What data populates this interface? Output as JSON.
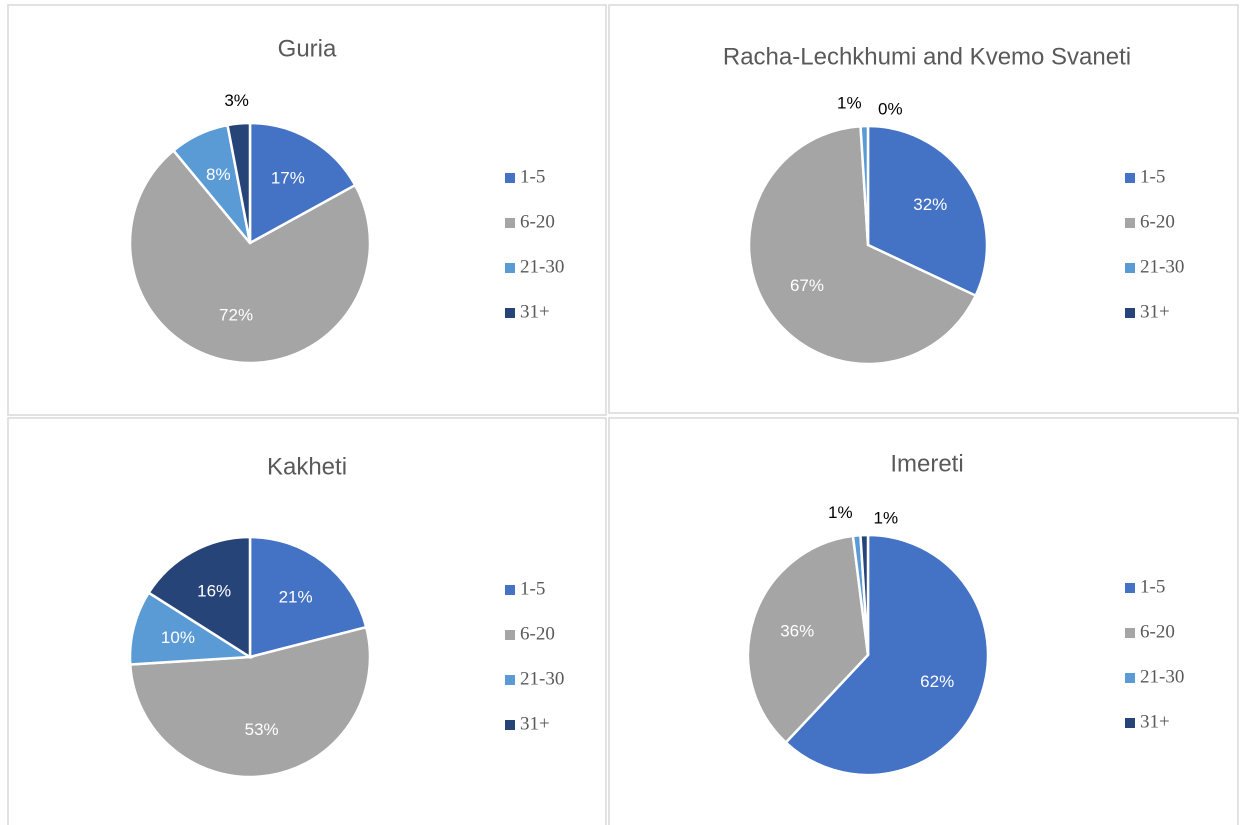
{
  "chart_data": [
    {
      "type": "pie",
      "title": "Guria",
      "categories": [
        "1-5",
        "6-20",
        "21-30",
        "31+"
      ],
      "values": [
        17,
        72,
        8,
        3
      ],
      "value_labels": [
        "17%",
        "72%",
        "8%",
        "3%"
      ],
      "colors": [
        "#4472c4",
        "#a5a5a5",
        "#5b9bd5",
        "#264478"
      ],
      "legend": "right"
    },
    {
      "type": "pie",
      "title": "Racha-Lechkhumi and Kvemo Svaneti",
      "categories": [
        "1-5",
        "6-20",
        "21-30",
        "31+"
      ],
      "values": [
        32,
        67,
        1,
        0
      ],
      "value_labels": [
        "32%",
        "67%",
        "1%",
        "0%"
      ],
      "colors": [
        "#4472c4",
        "#a5a5a5",
        "#5b9bd5",
        "#264478"
      ],
      "legend": "right"
    },
    {
      "type": "pie",
      "title": "Kakheti",
      "categories": [
        "1-5",
        "6-20",
        "21-30",
        "31+"
      ],
      "values": [
        21,
        53,
        10,
        16
      ],
      "value_labels": [
        "21%",
        "53%",
        "10%",
        "16%"
      ],
      "colors": [
        "#4472c4",
        "#a5a5a5",
        "#5b9bd5",
        "#264478"
      ],
      "legend": "right"
    },
    {
      "type": "pie",
      "title": "Imereti",
      "categories": [
        "1-5",
        "6-20",
        "21-30",
        "31+"
      ],
      "values": [
        62,
        36,
        1,
        1
      ],
      "value_labels": [
        "62%",
        "36%",
        "1%",
        "1%"
      ],
      "colors": [
        "#4472c4",
        "#a5a5a5",
        "#5b9bd5",
        "#264478"
      ],
      "legend": "right"
    }
  ]
}
